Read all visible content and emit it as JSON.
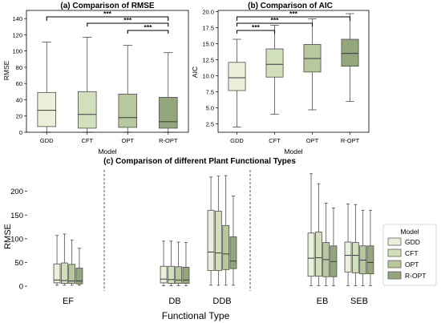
{
  "colors": {
    "GDD": "#eaf0da",
    "CFT": "#d2dfbb",
    "OPT": "#b7c89d",
    "R-OPT": "#94a67c",
    "box_edge": "#4d4d4d",
    "median": "#3a3a3a"
  },
  "legend": {
    "title": "Model",
    "items": [
      "GDD",
      "CFT",
      "OPT",
      "R-OPT"
    ]
  },
  "chart_data": [
    {
      "type": "box",
      "title": "(a) Comparison of RMSE",
      "xlabel": "Model",
      "ylabel": "RMSE",
      "ylim": [
        0,
        150
      ],
      "yticks": [
        0,
        20,
        40,
        60,
        80,
        100,
        120,
        140
      ],
      "categories": [
        "GDD",
        "CFT",
        "OPT",
        "R-OPT"
      ],
      "boxes": [
        {
          "whislo": 0,
          "q1": 7,
          "med": 27,
          "q3": 49,
          "whishi": 111
        },
        {
          "whislo": 0,
          "q1": 5,
          "med": 22,
          "q3": 50,
          "whishi": 117
        },
        {
          "whislo": 0,
          "q1": 6,
          "med": 18,
          "q3": 47,
          "whishi": 107
        },
        {
          "whislo": 0,
          "q1": 5,
          "med": 13,
          "q3": 43,
          "whishi": 98
        }
      ],
      "significance": [
        {
          "from": "GDD",
          "to": "R-OPT",
          "label": "***"
        },
        {
          "from": "CFT",
          "to": "R-OPT",
          "label": "***"
        },
        {
          "from": "OPT",
          "to": "R-OPT",
          "label": "***"
        }
      ]
    },
    {
      "type": "box",
      "title": "(b) Comparison of AIC",
      "xlabel": "Model",
      "ylabel": "AIC",
      "ylim": [
        1.2,
        20.2
      ],
      "yticks": [
        2.5,
        5.0,
        7.5,
        10.0,
        12.5,
        15.0,
        17.5,
        20.0
      ],
      "yticklabels": [
        "2.5",
        "5.0",
        "7.5",
        "10.0",
        "12.5",
        "15.0",
        "17.5",
        "20.0"
      ],
      "categories": [
        "GDD",
        "CFT",
        "OPT",
        "R-OPT"
      ],
      "boxes": [
        {
          "whislo": 2.0,
          "q1": 7.7,
          "med": 9.7,
          "q3": 12.1,
          "whishi": 15.7
        },
        {
          "whislo": 4.0,
          "q1": 9.8,
          "med": 11.8,
          "q3": 14.2,
          "whishi": 17.9
        },
        {
          "whislo": 4.7,
          "q1": 10.6,
          "med": 12.7,
          "q3": 14.9,
          "whishi": 18.9
        },
        {
          "whislo": 6.0,
          "q1": 11.5,
          "med": 13.5,
          "q3": 15.7,
          "whishi": 19.7
        }
      ],
      "significance": [
        {
          "from": "GDD",
          "to": "R-OPT",
          "label": "***"
        },
        {
          "from": "GDD",
          "to": "OPT",
          "label": "***"
        },
        {
          "from": "GDD",
          "to": "CFT",
          "label": "***"
        }
      ]
    },
    {
      "type": "box",
      "title": "(c) Comparison of different Plant Functional Types",
      "xlabel": "Functional Type",
      "ylabel": "RMSE",
      "ylim": [
        -10,
        245
      ],
      "yticks": [
        0,
        50,
        100,
        150,
        200
      ],
      "categories": [
        "EF",
        "DB",
        "DDB",
        "EB",
        "SEB"
      ],
      "series": [
        "GDD",
        "CFT",
        "OPT",
        "R-OPT"
      ],
      "group_separators_after": [
        "EF",
        "DDB"
      ],
      "boxes": [
        [
          {
            "whislo": 2,
            "q1": 7,
            "med": 13,
            "q3": 47,
            "whishi": 107
          },
          {
            "whislo": 2,
            "q1": 6,
            "med": 12,
            "q3": 49,
            "whishi": 110
          },
          {
            "whislo": 2,
            "q1": 6,
            "med": 11,
            "q3": 46,
            "whishi": 97
          },
          {
            "whislo": 2,
            "q1": 5,
            "med": 11,
            "q3": 38,
            "whishi": 80
          }
        ],
        [
          {
            "whislo": 1,
            "q1": 7,
            "med": 15,
            "q3": 42,
            "whishi": 95
          },
          {
            "whislo": 1,
            "q1": 6,
            "med": 14,
            "q3": 42,
            "whishi": 95
          },
          {
            "whislo": 1,
            "q1": 6,
            "med": 13,
            "q3": 41,
            "whishi": 93
          },
          {
            "whislo": 1,
            "q1": 6,
            "med": 13,
            "q3": 40,
            "whishi": 92
          }
        ],
        [
          {
            "whislo": 2,
            "q1": 33,
            "med": 72,
            "q3": 160,
            "whishi": 230
          },
          {
            "whislo": 2,
            "q1": 33,
            "med": 70,
            "q3": 158,
            "whishi": 232
          },
          {
            "whislo": 2,
            "q1": 35,
            "med": 68,
            "q3": 128,
            "whishi": 233
          },
          {
            "whislo": 2,
            "q1": 37,
            "med": 53,
            "q3": 104,
            "whishi": 190
          }
        ],
        [
          {
            "whislo": 1,
            "q1": 21,
            "med": 59,
            "q3": 112,
            "whishi": 237
          },
          {
            "whislo": 1,
            "q1": 21,
            "med": 60,
            "q3": 114,
            "whishi": 216
          },
          {
            "whislo": 1,
            "q1": 20,
            "med": 56,
            "q3": 92,
            "whishi": 175
          },
          {
            "whislo": 1,
            "q1": 20,
            "med": 52,
            "q3": 85,
            "whishi": 165
          }
        ],
        [
          {
            "whislo": 1,
            "q1": 30,
            "med": 65,
            "q3": 93,
            "whishi": 173
          },
          {
            "whislo": 1,
            "q1": 28,
            "med": 65,
            "q3": 92,
            "whishi": 172
          },
          {
            "whislo": 1,
            "q1": 26,
            "med": 55,
            "q3": 85,
            "whishi": 160
          },
          {
            "whislo": 1,
            "q1": 26,
            "med": 50,
            "q3": 85,
            "whishi": 160
          }
        ]
      ]
    }
  ]
}
